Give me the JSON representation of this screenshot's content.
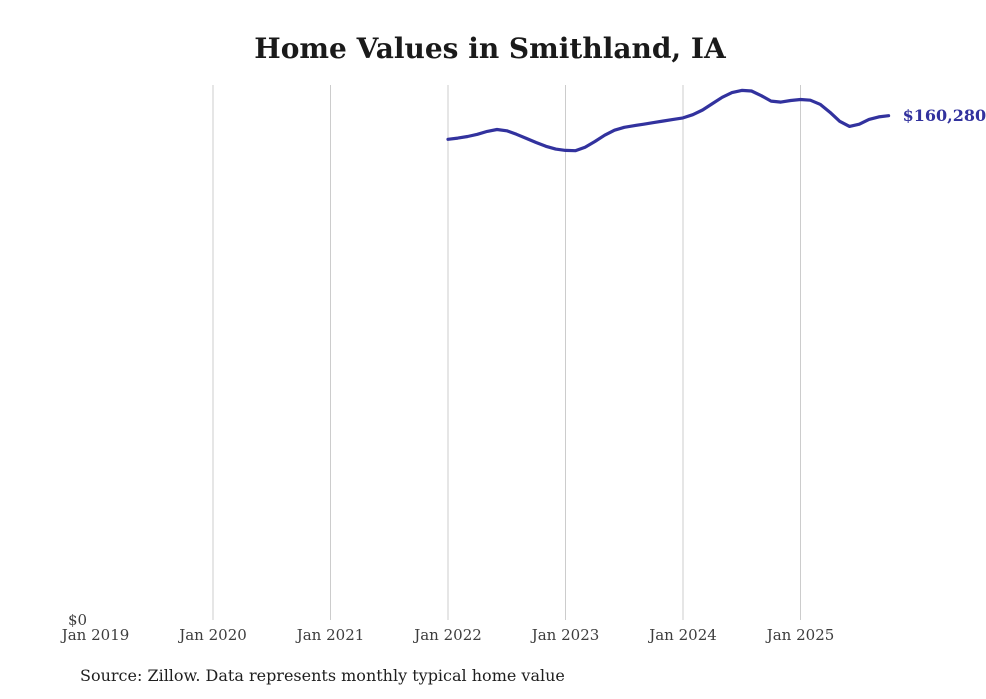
{
  "title": "Home Values in Smithland, IA",
  "chart_data": {
    "type": "line",
    "title": "Home Values in Smithland, IA",
    "x_ticks": [
      "Jan 2019",
      "Jan 2020",
      "Jan 2021",
      "Jan 2022",
      "Jan 2023",
      "Jan 2024",
      "Jan 2025"
    ],
    "y_zero_label": "$0",
    "ylim": [
      0,
      170000
    ],
    "grid": "vertical-gridlines-only",
    "legend": "none",
    "line_color": "#32329e",
    "grid_color": "#cccccc",
    "end_label": "$160,280",
    "end_value": 160280,
    "series": [
      {
        "name": "Monthly typical home value",
        "start_month": "Jan 2022",
        "end_month": "Oct 2025",
        "months_offset_from_first_tick": 36,
        "values": [
          152800,
          153200,
          153700,
          154400,
          155300,
          155900,
          155500,
          154400,
          153100,
          151800,
          150600,
          149700,
          149300,
          149200,
          150300,
          152100,
          154100,
          155700,
          156600,
          157100,
          157600,
          158100,
          158600,
          159100,
          159600,
          160600,
          162100,
          164100,
          166100,
          167600,
          168300,
          168100,
          166600,
          164900,
          164600,
          165100,
          165400,
          165200,
          163900,
          161400,
          158500,
          156900,
          157600,
          159100,
          159900,
          160280
        ]
      }
    ]
  },
  "footer": {
    "source": "Source: Zillow. Data represents monthly typical home value"
  }
}
